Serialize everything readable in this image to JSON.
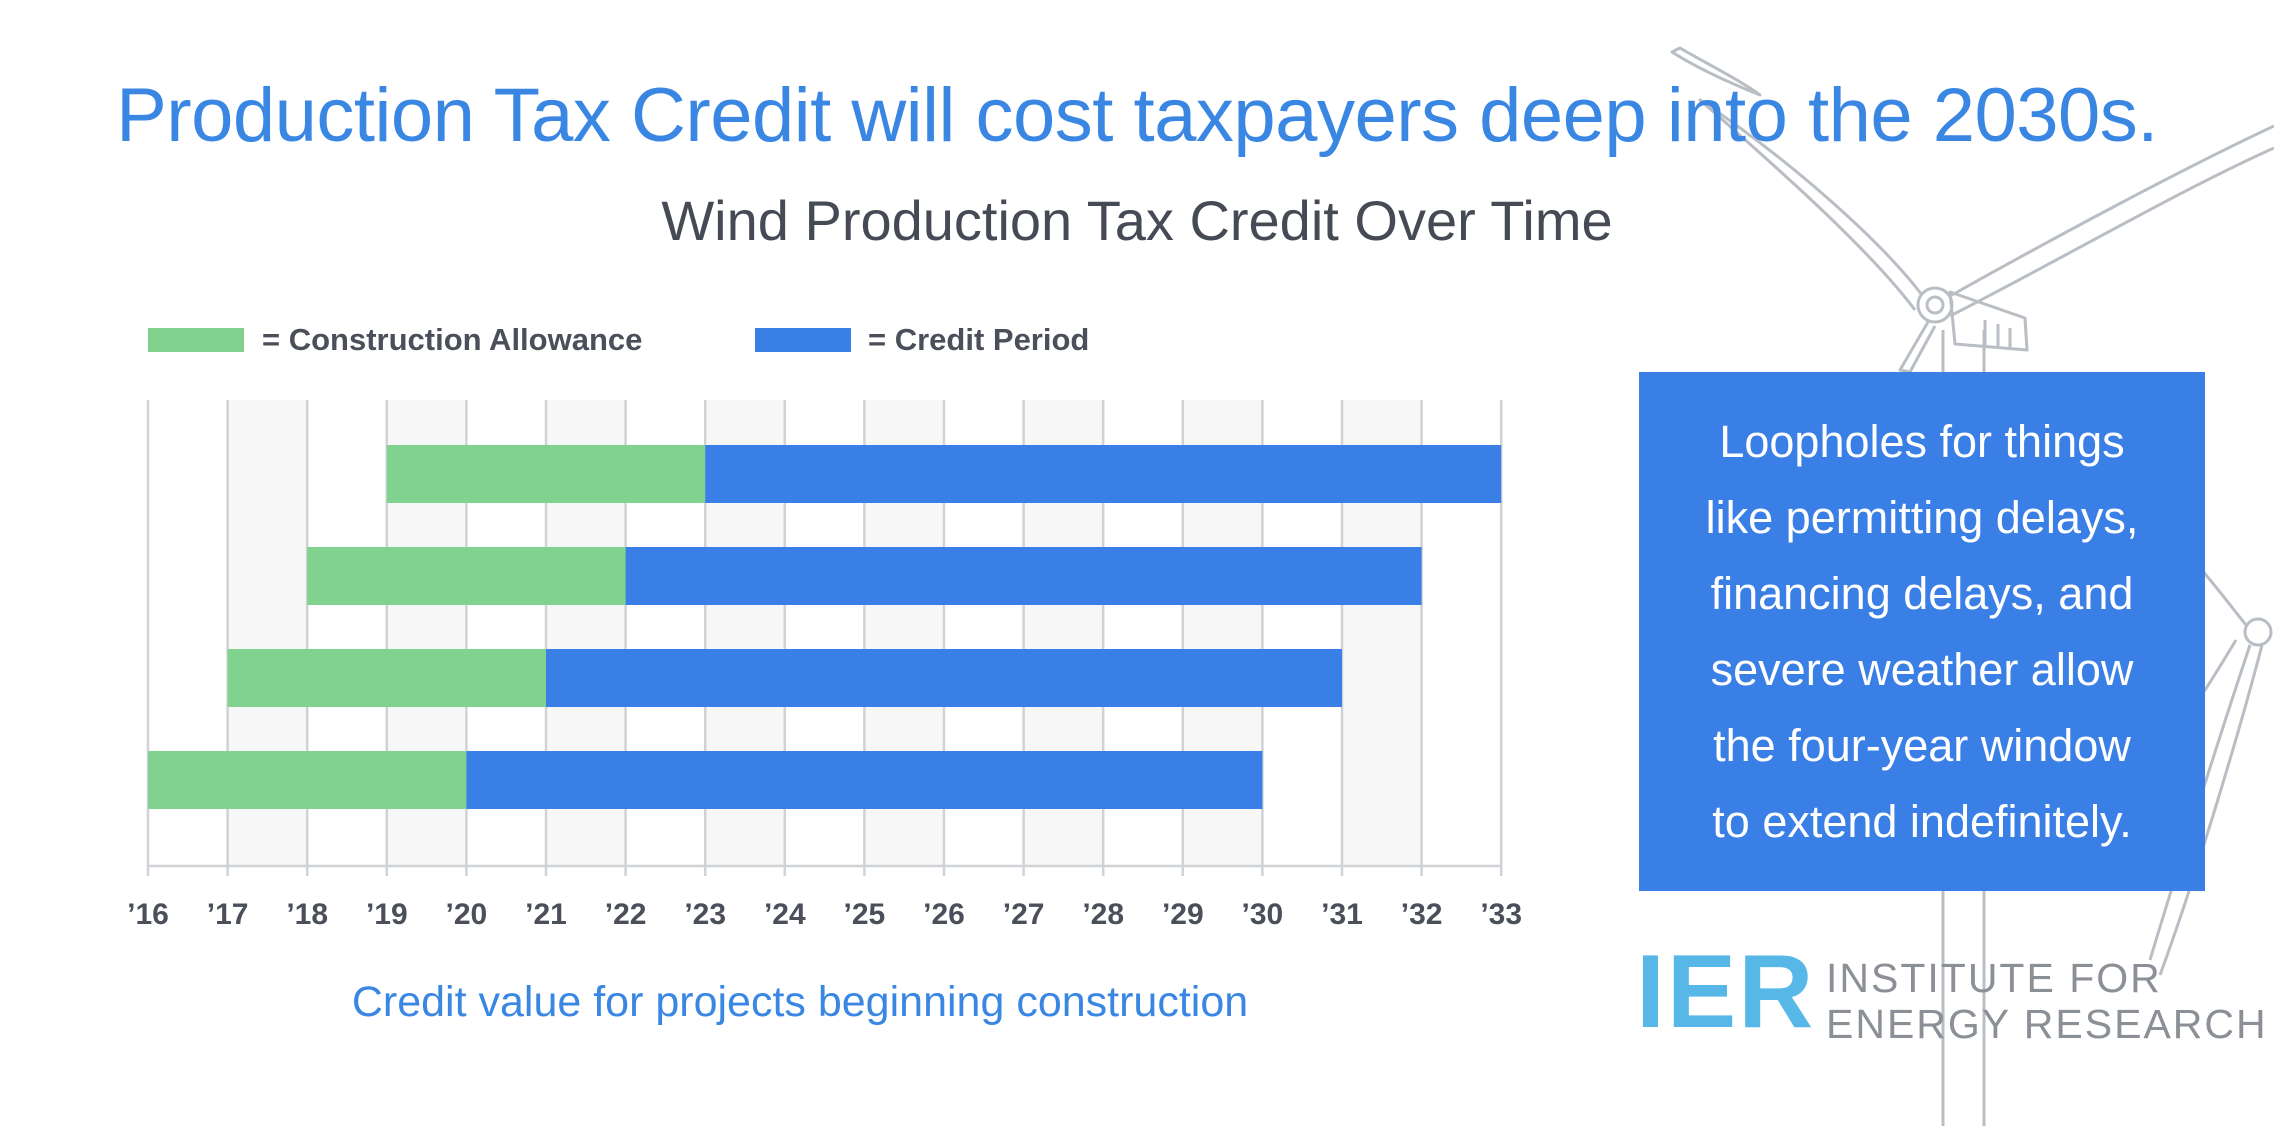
{
  "headline": "Production Tax Credit will cost taxpayers deep into the 2030s.",
  "chart_data": {
    "type": "bar",
    "orientation": "horizontal-range",
    "title": "Wind Production Tax Credit Over Time",
    "xlabel": "Credit value for projects beginning construction",
    "legend": [
      {
        "name": "= Construction Allowance",
        "color": "#80d28e"
      },
      {
        "name": "= Credit Period",
        "color": "#3a7fe6"
      }
    ],
    "legend_position": "top-left",
    "x_ticks": [
      "’16",
      "’17",
      "’18",
      "’19",
      "’20",
      "’21",
      "’22",
      "’23",
      "’24",
      "’25",
      "’26",
      "’27",
      "’28",
      "’29",
      "’30",
      "’31",
      "’32",
      "’33"
    ],
    "xlim": [
      2016,
      2033
    ],
    "grid": true,
    "rows": [
      {
        "construction": [
          2019,
          2023
        ],
        "credit": [
          2023,
          2033
        ]
      },
      {
        "construction": [
          2018,
          2022
        ],
        "credit": [
          2022,
          2032
        ]
      },
      {
        "construction": [
          2017,
          2021
        ],
        "credit": [
          2021,
          2031
        ]
      },
      {
        "construction": [
          2016,
          2020
        ],
        "credit": [
          2020,
          2030
        ]
      }
    ]
  },
  "note": {
    "text": "Loopholes for things\nlike permitting delays,\nfinancing delays, and\nsevere weather allow\nthe four-year window\nto extend indefinitely."
  },
  "logo": {
    "mark": "IER",
    "line1": "INSTITUTE FOR",
    "line2": "ENERGY RESEARCH"
  },
  "colors": {
    "accent": "#3a86e3",
    "construction": "#80d28e",
    "credit": "#3a7fe6",
    "logo_mark": "#57b8e8"
  }
}
